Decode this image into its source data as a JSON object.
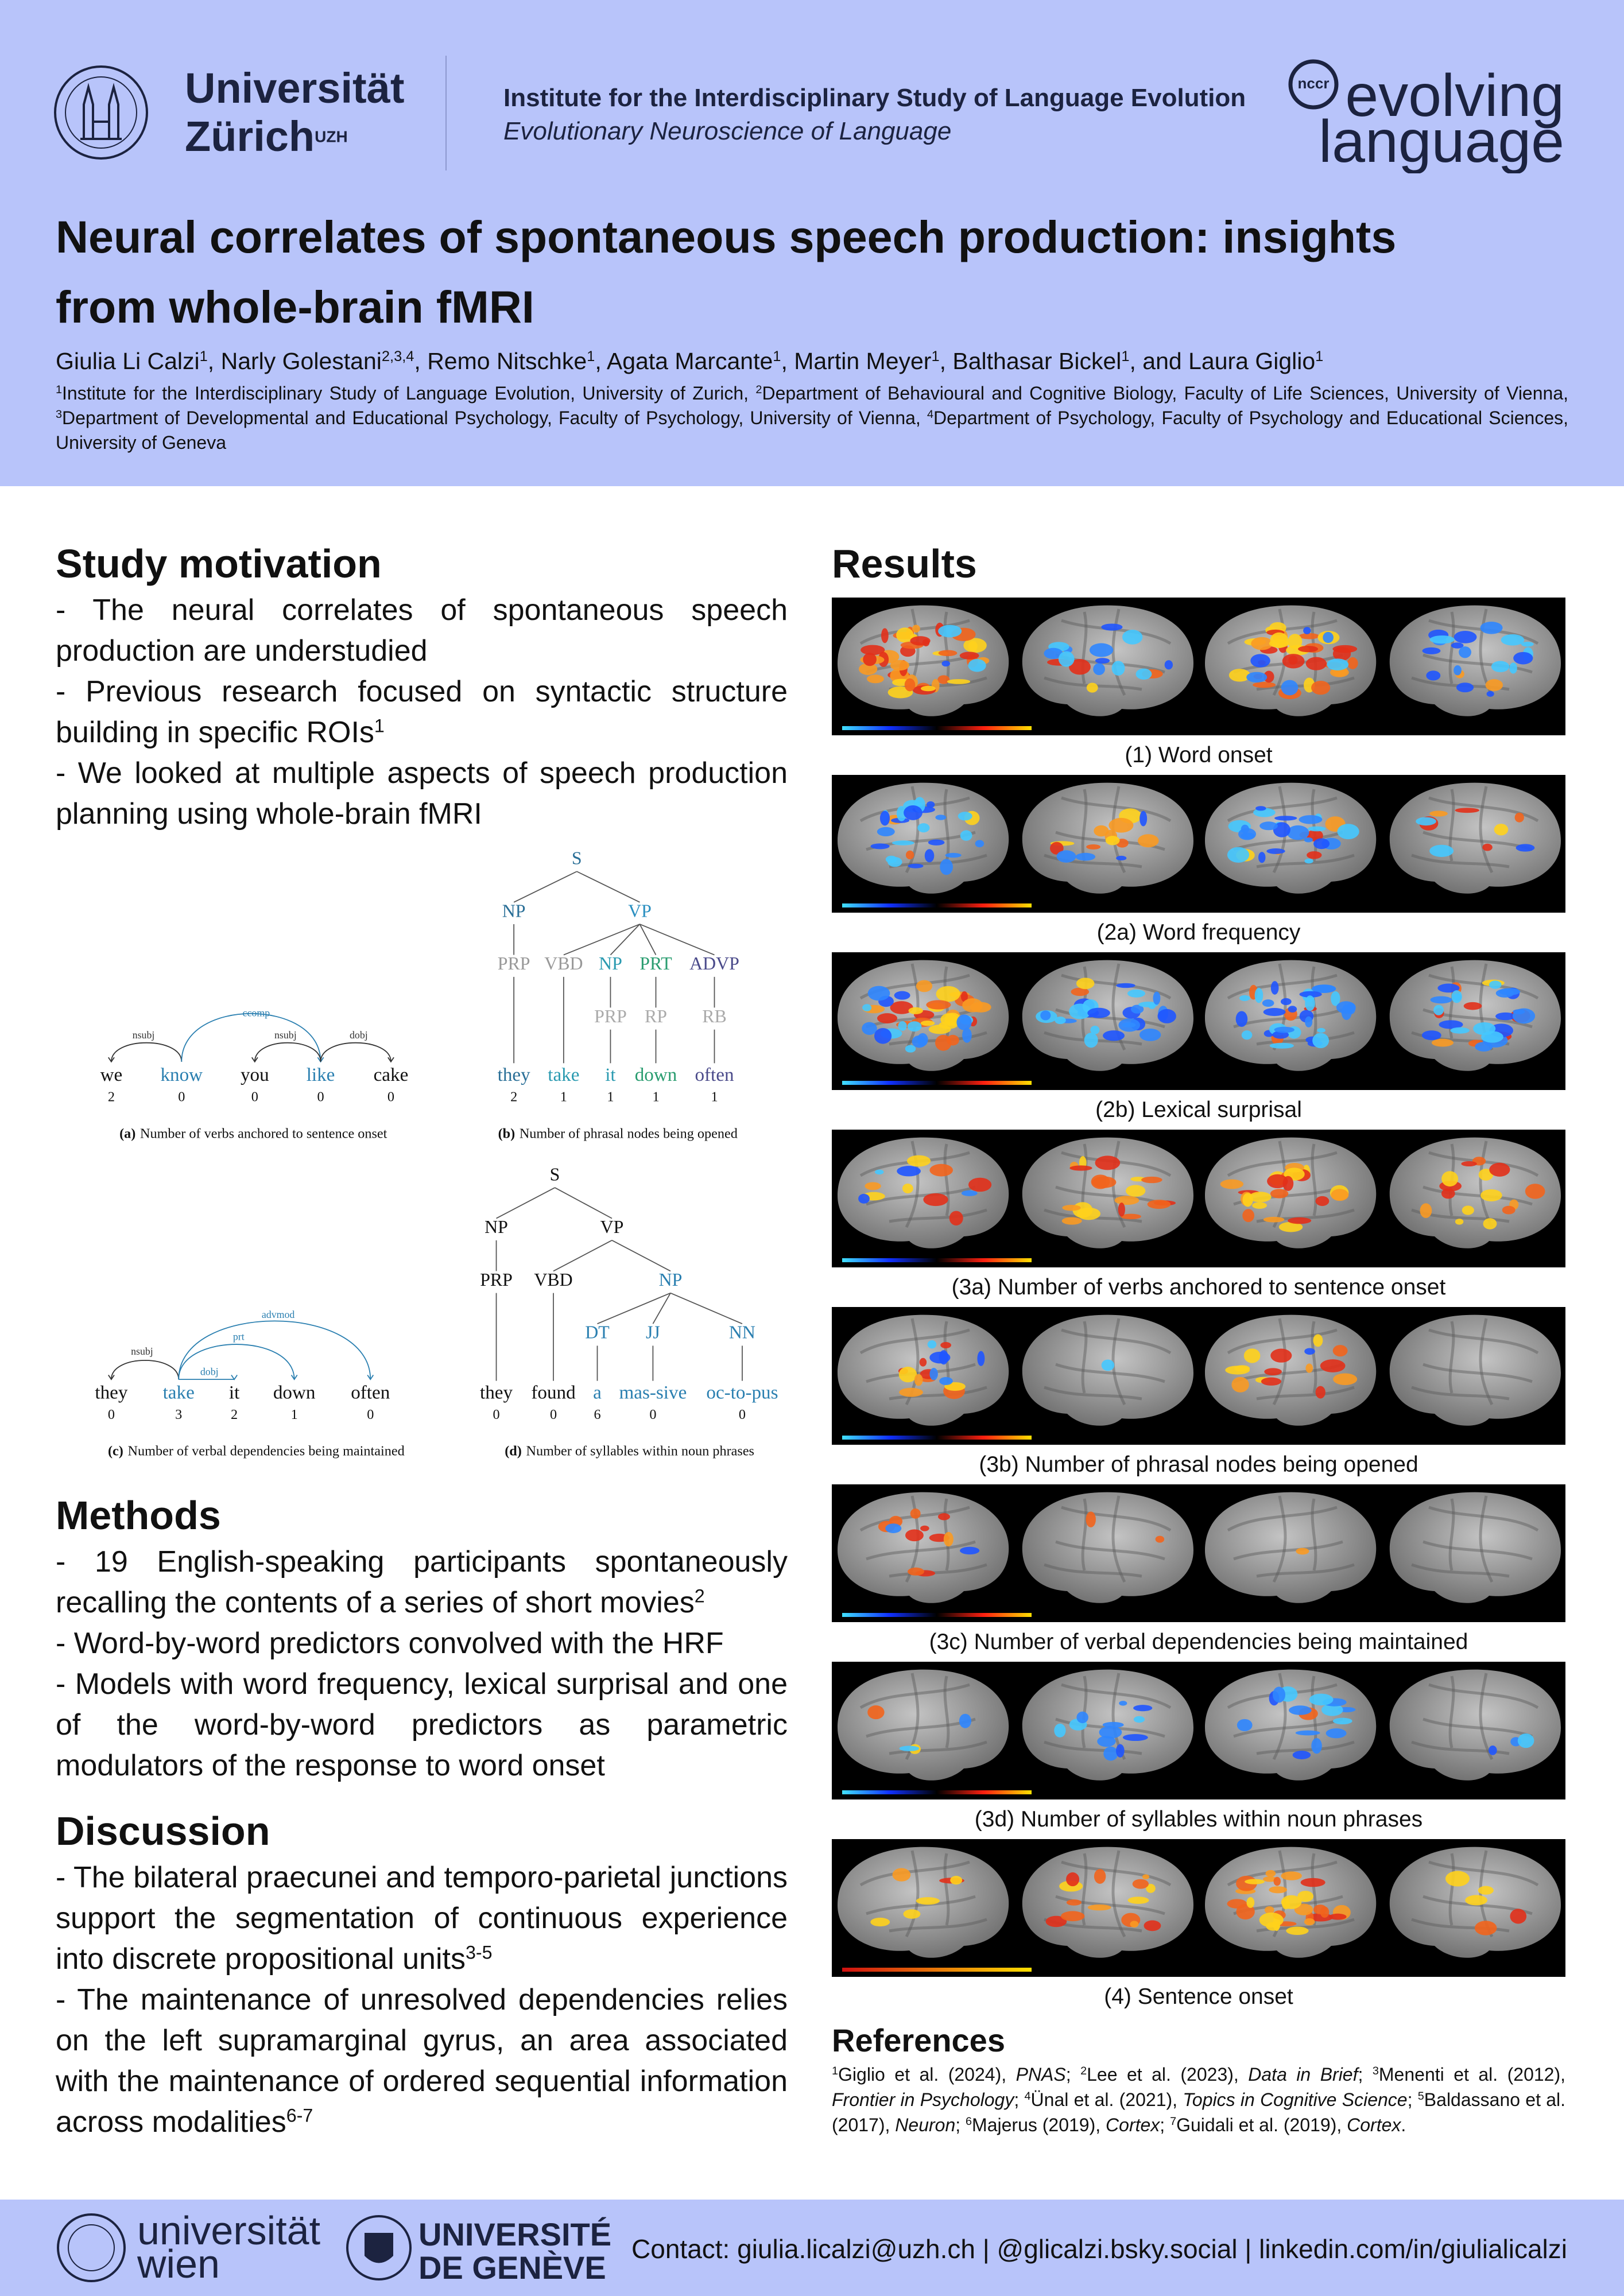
{
  "header": {
    "university": "Universität",
    "city": "Zürich",
    "city_sup": "UZH",
    "institute": "Institute for the Interdisciplinary Study of Language Evolution",
    "group": "Evolutionary Neuroscience of Language",
    "logo_small": "nccr",
    "logo_line1": "evolving",
    "logo_line2": "language"
  },
  "title": "Neural correlates of spontaneous speech production: insights from whole-brain fMRI",
  "authors": [
    {
      "name": "Giulia Li Calzi",
      "sup": "1"
    },
    {
      "sep": ", ",
      "name": "Narly Golestani",
      "sup": "2,3,4"
    },
    {
      "sep": ", ",
      "name": "Remo Nitschke",
      "sup": "1"
    },
    {
      "sep": ", ",
      "name": "Agata Marcante",
      "sup": "1"
    },
    {
      "sep": ", ",
      "name": "Martin Meyer",
      "sup": "1"
    },
    {
      "sep": ", ",
      "name": "Balthasar Bickel",
      "sup": "1"
    },
    {
      "sep": ", and ",
      "name": "Laura Giglio",
      "sup": "1"
    }
  ],
  "affiliations": [
    {
      "sup": "1",
      "text": "Institute for the Interdisciplinary Study of Language Evolution, University of Zurich, "
    },
    {
      "sup": "2",
      "text": "Department of Behavioural and Cognitive Biology, Faculty of Life Sciences, University of Vienna, "
    },
    {
      "sup": "3",
      "text": "Department of Developmental and Educational Psychology, Faculty of Psychology, University of Vienna, "
    },
    {
      "sup": "4",
      "text": "Department of Psychology, Faculty of Psychology and Educational Sciences, University of Geneva"
    }
  ],
  "motivation": {
    "heading": "Study motivation",
    "items": [
      {
        "text": "- The neural correlates of spontaneous speech production are understudied"
      },
      {
        "text": "- Previous research focused on syntactic structure building in specific ROIs",
        "sup": "1"
      },
      {
        "text": "- We looked at multiple aspects of speech production planning using whole-brain fMRI"
      }
    ]
  },
  "figure": {
    "panels": [
      {
        "caption_label": "(a)",
        "caption": "Number of verbs anchored to sentence onset",
        "arcs": [
          "nsubj",
          "ccomp",
          "nsubj",
          "dobj"
        ],
        "words": [
          "we",
          "know",
          "you",
          "like",
          "cake"
        ],
        "counts": [
          2,
          0,
          0,
          0,
          0
        ]
      },
      {
        "caption_label": "(b)",
        "caption": "Number of phrasal nodes being opened",
        "nodes": [
          "S",
          "NP",
          "VP",
          "PRP",
          "VBD",
          "NP",
          "PRT",
          "ADVP",
          "PRP",
          "RP",
          "RB"
        ],
        "words": [
          "they",
          "take",
          "it",
          "down",
          "often"
        ],
        "counts": [
          2,
          1,
          1,
          1,
          1
        ]
      },
      {
        "caption_label": "(c)",
        "caption": "Number of verbal dependencies being maintained",
        "arcs": [
          "nsubj",
          "dobj",
          "prt",
          "advmod"
        ],
        "words": [
          "they",
          "take",
          "it",
          "down",
          "often"
        ],
        "counts": [
          0,
          3,
          2,
          1,
          0
        ]
      },
      {
        "caption_label": "(d)",
        "caption": "Number of syllables within noun phrases",
        "nodes": [
          "S",
          "NP",
          "VP",
          "PRP",
          "VBD",
          "NP",
          "DT",
          "JJ",
          "NN"
        ],
        "words": [
          "they",
          "found",
          "a",
          "mas-sive",
          "oc-to-pus"
        ],
        "counts": [
          0,
          0,
          6,
          0,
          0
        ]
      }
    ]
  },
  "methods": {
    "heading": "Methods",
    "items": [
      {
        "text": "- 19 English-speaking participants spontaneously recalling the contents of a series of short movies",
        "sup": "2"
      },
      {
        "text": "- Word-by-word predictors convolved with the HRF"
      },
      {
        "text": "- Models with word frequency, lexical surprisal and one of the word-by-word predictors as parametric modulators of the response to word onset"
      }
    ]
  },
  "discussion": {
    "heading": "Discussion",
    "items": [
      {
        "text": "- The bilateral praecunei and temporo-parietal junctions support the segmentation of continuous experience into discrete propositional units",
        "sup": "3-5"
      },
      {
        "text": "- The maintenance of unresolved dependencies relies on the left supramarginal gyrus, an area associated with the maintenance of ordered sequential information across modalities",
        "sup": "6-7"
      }
    ]
  },
  "results": {
    "heading": "Results",
    "panels": [
      "(1) Word onset",
      "(2a) Word frequency",
      "(2b) Lexical surprisal",
      "(3a) Number of verbs anchored to sentence onset",
      "(3b) Number of phrasal nodes being opened",
      "(3c) Number of verbal dependencies being maintained",
      "(3d) Number of syllables within noun phrases",
      "(4) Sentence onset"
    ]
  },
  "references": {
    "heading": "References",
    "items": [
      {
        "sup": "1",
        "text": "Giglio et al. (2024), ",
        "journal": "PNAS",
        "end": "; "
      },
      {
        "sup": "2",
        "text": "Lee et al. (2023), ",
        "journal": "Data in Brief",
        "end": "; "
      },
      {
        "sup": "3",
        "text": "Menenti et al. (2012), ",
        "journal": "Frontier in Psychology",
        "end": "; "
      },
      {
        "sup": "4",
        "text": "Ünal et al. (2021), ",
        "journal": "Topics in Cognitive Science",
        "end": "; "
      },
      {
        "sup": "5",
        "text": "Baldassano et al. (2017), ",
        "journal": "Neuron",
        "end": "; "
      },
      {
        "sup": "6",
        "text": "Majerus (2019), ",
        "journal": "Cortex",
        "end": "; "
      },
      {
        "sup": "7",
        "text": "Guidali et al. (2019), ",
        "journal": "Cortex",
        "end": "."
      }
    ]
  },
  "footer": {
    "vienna_line1": "universität",
    "vienna_line2": "wien",
    "geneva_line1": "UNIVERSITÉ",
    "geneva_line2": "DE GENÈVE",
    "contact": "Contact: giulia.licalzi@uzh.ch | @glicalzi.bsky.social | linkedin.com/in/giulialicalzi"
  }
}
